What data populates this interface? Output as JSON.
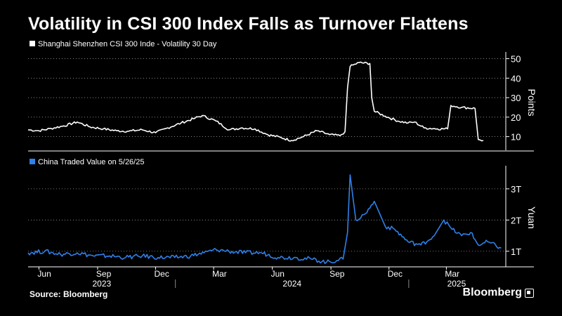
{
  "title": "Volatility in CSI 300 Index Falls as Turnover Flattens",
  "source": "Source: Bloomberg",
  "brand": "Bloomberg",
  "colors": {
    "volatility": "#ffffff",
    "turnover": "#2f80e8",
    "background": "#000000",
    "axis": "#ffffff",
    "grid": "#9a9a9a"
  },
  "chart_data": [
    {
      "type": "line",
      "legend": "Shanghai Shenzhen CSI 300 Inde - Volatility 30 Day",
      "ylabel": "Points",
      "ylim": [
        3,
        52
      ],
      "yticks": [
        10,
        20,
        30,
        40,
        50
      ],
      "axis_side": "right",
      "grid": "dotted",
      "series": [
        {
          "name": "Shanghai Shenzhen CSI 300 Inde - Volatility 30 Day",
          "color": "#ffffff",
          "points": [
            [
              "2023-05-15",
              13.5
            ],
            [
              "2023-06-01",
              13.0
            ],
            [
              "2023-06-20",
              14.2
            ],
            [
              "2023-07-10",
              15.5
            ],
            [
              "2023-07-31",
              17.5
            ],
            [
              "2023-08-20",
              15.0
            ],
            [
              "2023-09-10",
              14.0
            ],
            [
              "2023-10-01",
              13.0
            ],
            [
              "2023-10-20",
              12.8
            ],
            [
              "2023-11-10",
              13.5
            ],
            [
              "2023-12-01",
              12.0
            ],
            [
              "2023-12-20",
              14.5
            ],
            [
              "2024-01-10",
              17.0
            ],
            [
              "2024-02-01",
              19.5
            ],
            [
              "2024-02-12",
              20.8
            ],
            [
              "2024-03-05",
              18.0
            ],
            [
              "2024-03-25",
              13.5
            ],
            [
              "2024-04-15",
              14.5
            ],
            [
              "2024-05-05",
              14.0
            ],
            [
              "2024-05-25",
              11.0
            ],
            [
              "2024-06-15",
              9.5
            ],
            [
              "2024-07-01",
              8.0
            ],
            [
              "2024-07-20",
              10.0
            ],
            [
              "2024-08-10",
              13.0
            ],
            [
              "2024-08-30",
              11.0
            ],
            [
              "2024-09-15",
              10.5
            ],
            [
              "2024-09-23",
              12.5
            ],
            [
              "2024-09-27",
              35.0
            ],
            [
              "2024-10-01",
              46.0
            ],
            [
              "2024-10-15",
              48.0
            ],
            [
              "2024-11-01",
              47.5
            ],
            [
              "2024-11-04",
              30.0
            ],
            [
              "2024-11-08",
              23.0
            ],
            [
              "2024-11-25",
              20.5
            ],
            [
              "2024-12-15",
              18.0
            ],
            [
              "2024-12-31",
              17.0
            ],
            [
              "2025-01-10",
              17.5
            ],
            [
              "2025-01-25",
              14.5
            ],
            [
              "2025-02-15",
              14.0
            ],
            [
              "2025-03-03",
              14.0
            ],
            [
              "2025-03-08",
              26.0
            ],
            [
              "2025-03-25",
              25.0
            ],
            [
              "2025-04-15",
              24.5
            ],
            [
              "2025-04-20",
              8.5
            ],
            [
              "2025-04-28",
              8.0
            ]
          ]
        }
      ]
    },
    {
      "type": "line",
      "legend": "China Traded Value on 5/26/25",
      "ylabel": "Yuan",
      "ylim": [
        0.5,
        3.65
      ],
      "yticks": [
        1,
        2,
        3
      ],
      "yticklabels": [
        "1T",
        "2T",
        "3T"
      ],
      "axis_side": "right",
      "grid": "dotted",
      "series": [
        {
          "name": "China Traded Value on 5/26/25",
          "color": "#2f80e8",
          "points": [
            [
              "2023-05-15",
              0.95
            ],
            [
              "2023-06-10",
              1.0
            ],
            [
              "2023-07-05",
              0.9
            ],
            [
              "2023-07-31",
              0.95
            ],
            [
              "2023-08-25",
              0.85
            ],
            [
              "2023-09-20",
              0.85
            ],
            [
              "2023-10-15",
              0.8
            ],
            [
              "2023-11-10",
              0.85
            ],
            [
              "2023-12-05",
              0.8
            ],
            [
              "2023-12-31",
              0.8
            ],
            [
              "2024-01-25",
              0.85
            ],
            [
              "2024-02-15",
              0.95
            ],
            [
              "2024-03-05",
              1.05
            ],
            [
              "2024-03-25",
              1.0
            ],
            [
              "2024-04-20",
              0.95
            ],
            [
              "2024-05-15",
              0.95
            ],
            [
              "2024-06-10",
              0.8
            ],
            [
              "2024-07-05",
              0.8
            ],
            [
              "2024-08-01",
              0.75
            ],
            [
              "2024-08-25",
              0.65
            ],
            [
              "2024-09-10",
              0.7
            ],
            [
              "2024-09-20",
              0.75
            ],
            [
              "2024-09-27",
              1.6
            ],
            [
              "2024-10-01",
              3.45
            ],
            [
              "2024-10-10",
              2.0
            ],
            [
              "2024-10-25",
              2.2
            ],
            [
              "2024-11-08",
              2.6
            ],
            [
              "2024-11-25",
              1.8
            ],
            [
              "2024-12-10",
              1.7
            ],
            [
              "2024-12-31",
              1.3
            ],
            [
              "2025-01-20",
              1.2
            ],
            [
              "2025-02-10",
              1.5
            ],
            [
              "2025-02-25",
              2.0
            ],
            [
              "2025-03-10",
              1.7
            ],
            [
              "2025-03-25",
              1.5
            ],
            [
              "2025-04-08",
              1.6
            ],
            [
              "2025-04-20",
              1.2
            ],
            [
              "2025-05-05",
              1.3
            ],
            [
              "2025-05-26",
              1.1
            ]
          ]
        }
      ]
    }
  ],
  "x_axis": {
    "range": [
      "2023-05-15",
      "2025-05-31"
    ],
    "month_ticks": [
      {
        "label": "Jun",
        "date": "2023-06-01"
      },
      {
        "label": "Sep",
        "date": "2023-09-01"
      },
      {
        "label": "Dec",
        "date": "2023-12-01"
      },
      {
        "label": "Mar",
        "date": "2024-03-01"
      },
      {
        "label": "Jun",
        "date": "2024-06-01"
      },
      {
        "label": "Sep",
        "date": "2024-09-01"
      },
      {
        "label": "Dec",
        "date": "2024-12-01"
      },
      {
        "label": "Mar",
        "date": "2025-03-01"
      }
    ],
    "years": [
      {
        "label": "2023",
        "from": "2023-05-15",
        "to": "2024-01-01"
      },
      {
        "label": "2024",
        "from": "2024-01-01",
        "to": "2025-01-01"
      },
      {
        "label": "2025",
        "from": "2025-01-01",
        "to": "2025-05-31"
      }
    ]
  }
}
